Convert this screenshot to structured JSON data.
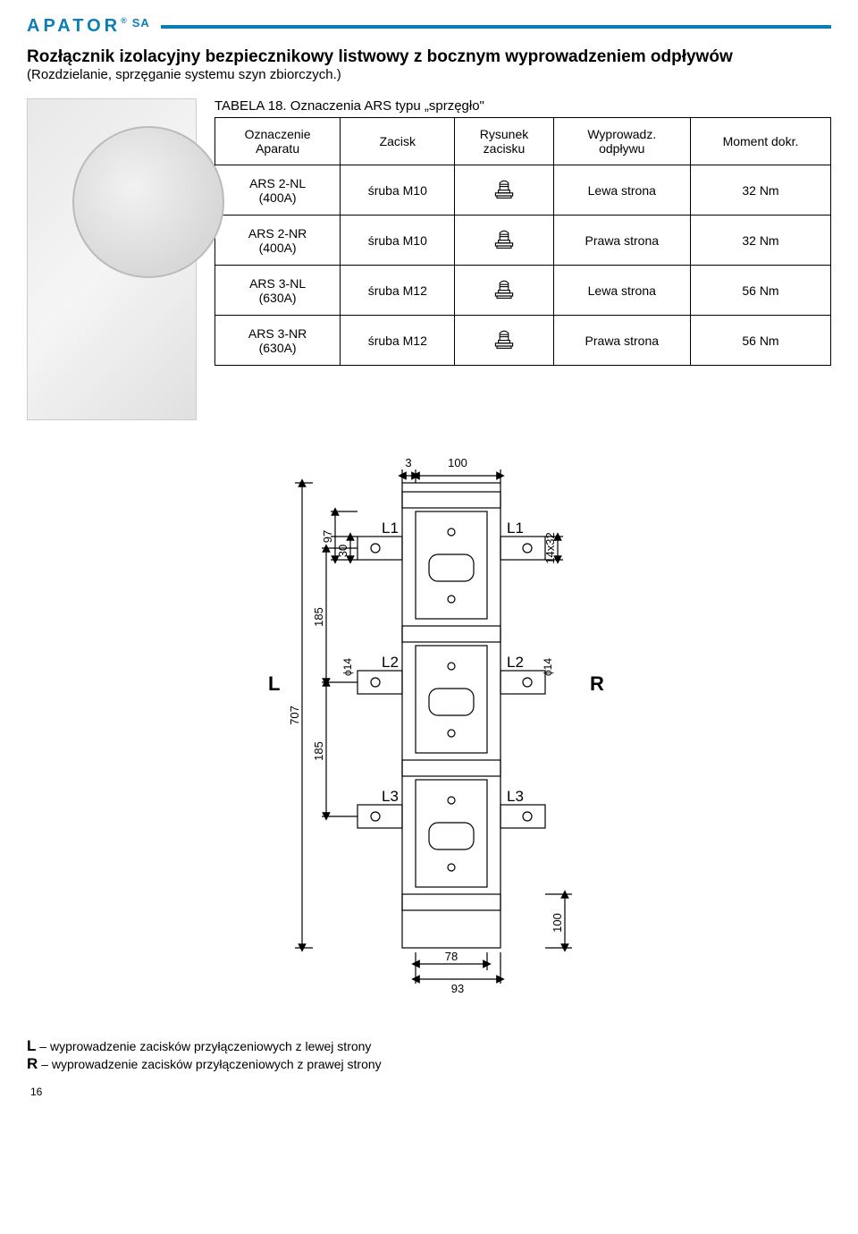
{
  "brand": {
    "name": "APATOR",
    "suffix": "SA",
    "reg": "®",
    "color": "#0b7fb5"
  },
  "title": "Rozłącznik izolacyjny bezpiecznikowy listwowy z bocznym wyprowadzeniem odpływów",
  "subtitle": "(Rozdzielanie, sprzęganie systemu szyn zbiorczych.)",
  "table": {
    "caption_prefix": "TABELA 18.",
    "caption_rest": " Oznaczenia ARS typu „sprzęgło\"",
    "headers": {
      "c1a": "Oznaczenie",
      "c1b": "Aparatu",
      "c2": "Zacisk",
      "c3a": "Rysunek",
      "c3b": "zacisku",
      "c4a": "Wyprowadz.",
      "c4b": "odpływu",
      "c5": "Moment dokr."
    },
    "rows": [
      {
        "model": "ARS 2-NL",
        "amp": "(400A)",
        "clamp": "śruba  M10",
        "side": "Lewa strona",
        "torque": "32 Nm"
      },
      {
        "model": "ARS 2-NR",
        "amp": "(400A)",
        "clamp": "śruba  M10",
        "side": "Prawa strona",
        "torque": "32 Nm"
      },
      {
        "model": "ARS 3-NL",
        "amp": "(630A)",
        "clamp": "śruba  M12",
        "side": "Lewa strona",
        "torque": "56 Nm"
      },
      {
        "model": "ARS 3-NR",
        "amp": "(630A)",
        "clamp": "śruba  M12",
        "side": "Prawa strona",
        "torque": "56 Nm"
      }
    ]
  },
  "diagram": {
    "dims": {
      "top_gap": "3",
      "top_width": "100",
      "left_97": "97",
      "left_30": "30",
      "right_14x32": "14x32",
      "v_185a": "185",
      "v_185b": "185",
      "total_707": "707",
      "phi14_l": "ϕ14",
      "phi14_r": "ϕ14",
      "bottom_100": "100",
      "bottom_78": "78",
      "bottom_93": "93"
    },
    "labels": {
      "L1l": "L1",
      "L1r": "L1",
      "L2l": "L2",
      "L2r": "L2",
      "L3l": "L3",
      "L3r": "L3",
      "L": "L",
      "R": "R"
    }
  },
  "legend": {
    "L_key": "L",
    "L_text": " – wyprowadzenie zacisków przyłączeniowych z lewej strony",
    "R_key": "R",
    "R_text": " – wyprowadzenie zacisków przyłączeniowych z prawej strony"
  },
  "page_number": "16",
  "colors": {
    "line": "#000000",
    "accent": "#0b7fb5",
    "grey": "#d8d8d8"
  }
}
